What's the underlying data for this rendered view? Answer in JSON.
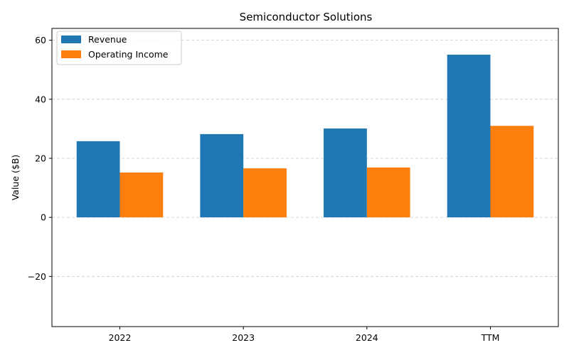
{
  "chart_data": {
    "type": "bar",
    "title": "Semiconductor Solutions",
    "xlabel": "",
    "ylabel": "Value ($B)",
    "categories": [
      "2022",
      "2023",
      "2024",
      "TTM"
    ],
    "series": [
      {
        "name": "Revenue",
        "color": "#1f77b4",
        "values": [
          25.8,
          28.2,
          30.1,
          55.1
        ]
      },
      {
        "name": "Operating Income",
        "color": "#ff7f0e",
        "values": [
          15.2,
          16.6,
          16.9,
          31.0
        ]
      }
    ],
    "ylim": [
      -37,
      64
    ],
    "yticks": [
      -20,
      0,
      20,
      40,
      60
    ],
    "ytick_labels": [
      "−20",
      "0",
      "20",
      "40",
      "60"
    ],
    "grid": true,
    "legend_position": "top-left"
  }
}
